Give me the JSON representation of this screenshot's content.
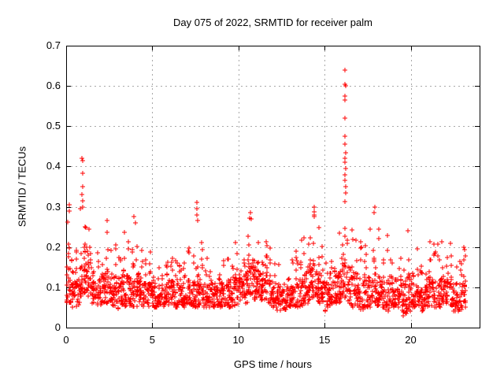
{
  "page": {
    "background": "#ffffff",
    "text_color": "#000000"
  },
  "chart_data": {
    "type": "scatter",
    "title": "Day 075 of 2022, SRMTID for receiver palm",
    "xlabel": "GPS time / hours",
    "ylabel": "SRMTID / TECUs",
    "xlim": [
      0,
      24
    ],
    "ylim": [
      0,
      0.7
    ],
    "xticks": [
      0,
      5,
      10,
      15,
      20
    ],
    "xtick_labels": [
      "0",
      "5",
      "10",
      "15",
      "20"
    ],
    "yticks": [
      0,
      0.1,
      0.2,
      0.3,
      0.4,
      0.5,
      0.6,
      0.7
    ],
    "ytick_labels": [
      "0",
      "0.1",
      "0.2",
      "0.3",
      "0.4",
      "0.5",
      "0.6",
      "0.7"
    ],
    "grid": true,
    "grid_color": "#a8a8a8",
    "frame_color": "#000000",
    "legend": "none",
    "marker": "plus",
    "marker_color": "#ff0000",
    "x_data_range": [
      0.05,
      23.2
    ],
    "description": "Dense noisy scatter band between ~0.05 and ~0.2 TECUs all day, with wave-activity peaks near 1 h (max 0.42), 7.6 h (0.31), 10.7 h (0.285), 14.4 h (0.30), a large spike near 16.2 h (max 0.64), and 17.9 h (0.30).",
    "density_bins": {
      "bin_width_hours": 0.25,
      "columns": [
        "x_center",
        "y_min",
        "y_typical_max",
        "y_max",
        "count"
      ],
      "rows": [
        [
          0.125,
          0.05,
          0.18,
          0.31,
          24
        ],
        [
          0.375,
          0.05,
          0.15,
          0.25,
          22
        ],
        [
          0.625,
          0.05,
          0.14,
          0.22,
          22
        ],
        [
          0.875,
          0.06,
          0.16,
          0.3,
          22
        ],
        [
          1.125,
          0.07,
          0.2,
          0.335,
          26
        ],
        [
          1.375,
          0.07,
          0.18,
          0.28,
          24
        ],
        [
          1.625,
          0.06,
          0.14,
          0.22,
          22
        ],
        [
          1.875,
          0.05,
          0.12,
          0.19,
          22
        ],
        [
          2.125,
          0.06,
          0.13,
          0.22,
          22
        ],
        [
          2.375,
          0.06,
          0.14,
          0.27,
          22
        ],
        [
          2.625,
          0.05,
          0.12,
          0.2,
          22
        ],
        [
          2.875,
          0.05,
          0.13,
          0.24,
          22
        ],
        [
          3.125,
          0.04,
          0.12,
          0.2,
          22
        ],
        [
          3.375,
          0.05,
          0.14,
          0.25,
          24
        ],
        [
          3.625,
          0.05,
          0.13,
          0.22,
          22
        ],
        [
          3.875,
          0.05,
          0.15,
          0.28,
          24
        ],
        [
          4.125,
          0.05,
          0.14,
          0.26,
          22
        ],
        [
          4.375,
          0.05,
          0.12,
          0.2,
          22
        ],
        [
          4.625,
          0.06,
          0.11,
          0.18,
          22
        ],
        [
          4.875,
          0.05,
          0.12,
          0.21,
          22
        ],
        [
          5.125,
          0.05,
          0.11,
          0.17,
          22
        ],
        [
          5.375,
          0.05,
          0.1,
          0.16,
          20
        ],
        [
          5.625,
          0.05,
          0.11,
          0.18,
          22
        ],
        [
          5.875,
          0.05,
          0.12,
          0.2,
          22
        ],
        [
          6.125,
          0.06,
          0.12,
          0.22,
          22
        ],
        [
          6.375,
          0.05,
          0.11,
          0.18,
          20
        ],
        [
          6.625,
          0.05,
          0.1,
          0.16,
          20
        ],
        [
          6.875,
          0.05,
          0.11,
          0.18,
          22
        ],
        [
          7.125,
          0.05,
          0.12,
          0.22,
          22
        ],
        [
          7.375,
          0.05,
          0.13,
          0.25,
          22
        ],
        [
          7.625,
          0.05,
          0.15,
          0.31,
          24
        ],
        [
          7.875,
          0.05,
          0.12,
          0.22,
          22
        ],
        [
          8.125,
          0.05,
          0.11,
          0.2,
          22
        ],
        [
          8.375,
          0.05,
          0.11,
          0.18,
          22
        ],
        [
          8.625,
          0.05,
          0.1,
          0.17,
          20
        ],
        [
          8.875,
          0.05,
          0.11,
          0.18,
          22
        ],
        [
          9.125,
          0.05,
          0.12,
          0.2,
          22
        ],
        [
          9.375,
          0.05,
          0.12,
          0.22,
          22
        ],
        [
          9.625,
          0.05,
          0.13,
          0.24,
          22
        ],
        [
          9.875,
          0.05,
          0.12,
          0.22,
          22
        ],
        [
          10.125,
          0.06,
          0.13,
          0.24,
          22
        ],
        [
          10.375,
          0.06,
          0.14,
          0.26,
          24
        ],
        [
          10.625,
          0.07,
          0.16,
          0.285,
          24
        ],
        [
          10.875,
          0.07,
          0.16,
          0.27,
          24
        ],
        [
          11.125,
          0.07,
          0.15,
          0.26,
          24
        ],
        [
          11.375,
          0.06,
          0.14,
          0.24,
          22
        ],
        [
          11.625,
          0.06,
          0.13,
          0.22,
          22
        ],
        [
          11.875,
          0.05,
          0.12,
          0.2,
          22
        ],
        [
          12.125,
          0.05,
          0.1,
          0.17,
          22
        ],
        [
          12.375,
          0.04,
          0.1,
          0.16,
          22
        ],
        [
          12.625,
          0.04,
          0.09,
          0.15,
          20
        ],
        [
          12.875,
          0.05,
          0.1,
          0.17,
          20
        ],
        [
          13.125,
          0.05,
          0.1,
          0.18,
          22
        ],
        [
          13.375,
          0.05,
          0.11,
          0.2,
          22
        ],
        [
          13.625,
          0.05,
          0.12,
          0.22,
          22
        ],
        [
          13.875,
          0.06,
          0.13,
          0.24,
          22
        ],
        [
          14.125,
          0.06,
          0.15,
          0.27,
          24
        ],
        [
          14.375,
          0.07,
          0.16,
          0.3,
          24
        ],
        [
          14.625,
          0.06,
          0.14,
          0.26,
          24
        ],
        [
          14.875,
          0.06,
          0.13,
          0.22,
          22
        ],
        [
          15.125,
          0.04,
          0.11,
          0.2,
          22
        ],
        [
          15.375,
          0.05,
          0.12,
          0.22,
          22
        ],
        [
          15.625,
          0.05,
          0.13,
          0.25,
          22
        ],
        [
          15.875,
          0.06,
          0.14,
          0.26,
          22
        ],
        [
          16.125,
          0.07,
          0.18,
          0.33,
          26
        ],
        [
          16.375,
          0.06,
          0.15,
          0.3,
          24
        ],
        [
          16.625,
          0.05,
          0.13,
          0.25,
          22
        ],
        [
          16.875,
          0.05,
          0.12,
          0.22,
          22
        ],
        [
          17.125,
          0.04,
          0.12,
          0.25,
          22
        ],
        [
          17.375,
          0.05,
          0.13,
          0.24,
          22
        ],
        [
          17.625,
          0.05,
          0.13,
          0.26,
          22
        ],
        [
          17.875,
          0.05,
          0.15,
          0.3,
          24
        ],
        [
          18.125,
          0.05,
          0.13,
          0.25,
          22
        ],
        [
          18.375,
          0.05,
          0.12,
          0.22,
          22
        ],
        [
          18.625,
          0.04,
          0.12,
          0.24,
          22
        ],
        [
          18.875,
          0.05,
          0.13,
          0.25,
          22
        ],
        [
          19.125,
          0.05,
          0.12,
          0.22,
          22
        ],
        [
          19.375,
          0.05,
          0.11,
          0.2,
          22
        ],
        [
          19.625,
          0.03,
          0.11,
          0.22,
          22
        ],
        [
          19.875,
          0.04,
          0.13,
          0.25,
          22
        ],
        [
          20.125,
          0.05,
          0.12,
          0.22,
          22
        ],
        [
          20.375,
          0.05,
          0.11,
          0.2,
          22
        ],
        [
          20.625,
          0.04,
          0.1,
          0.18,
          20
        ],
        [
          20.875,
          0.05,
          0.11,
          0.2,
          22
        ],
        [
          21.125,
          0.05,
          0.13,
          0.24,
          22
        ],
        [
          21.375,
          0.05,
          0.12,
          0.22,
          22
        ],
        [
          21.625,
          0.05,
          0.12,
          0.23,
          22
        ],
        [
          21.875,
          0.06,
          0.13,
          0.22,
          22
        ],
        [
          22.125,
          0.06,
          0.12,
          0.2,
          22
        ],
        [
          22.375,
          0.05,
          0.11,
          0.19,
          22
        ],
        [
          22.625,
          0.04,
          0.09,
          0.16,
          20
        ],
        [
          22.875,
          0.04,
          0.1,
          0.18,
          20
        ],
        [
          23.125,
          0.05,
          0.11,
          0.21,
          22
        ]
      ]
    },
    "outlier_points": [
      [
        0.18,
        0.305
      ],
      [
        0.2,
        0.29
      ],
      [
        0.93,
        0.42
      ],
      [
        0.95,
        0.415
      ],
      [
        0.94,
        0.384
      ],
      [
        0.96,
        0.35
      ],
      [
        0.93,
        0.33
      ],
      [
        0.95,
        0.315
      ],
      [
        0.97,
        0.3
      ],
      [
        3.95,
        0.275
      ],
      [
        4.0,
        0.26
      ],
      [
        7.58,
        0.31
      ],
      [
        7.6,
        0.295
      ],
      [
        7.57,
        0.28
      ],
      [
        7.62,
        0.265
      ],
      [
        10.7,
        0.285
      ],
      [
        10.72,
        0.27
      ],
      [
        14.4,
        0.3
      ],
      [
        14.42,
        0.275
      ],
      [
        16.19,
        0.64
      ],
      [
        16.17,
        0.605
      ],
      [
        16.21,
        0.6
      ],
      [
        16.19,
        0.575
      ],
      [
        16.2,
        0.565
      ],
      [
        16.18,
        0.52
      ],
      [
        16.2,
        0.475
      ],
      [
        16.19,
        0.455
      ],
      [
        16.21,
        0.435
      ],
      [
        16.17,
        0.42
      ],
      [
        16.2,
        0.41
      ],
      [
        16.22,
        0.395
      ],
      [
        16.18,
        0.38
      ],
      [
        16.2,
        0.365
      ],
      [
        16.21,
        0.35
      ],
      [
        16.23,
        0.335
      ],
      [
        17.9,
        0.3
      ],
      [
        17.88,
        0.285
      ],
      [
        22.3,
        0.21
      ],
      [
        23.1,
        0.2
      ]
    ]
  }
}
